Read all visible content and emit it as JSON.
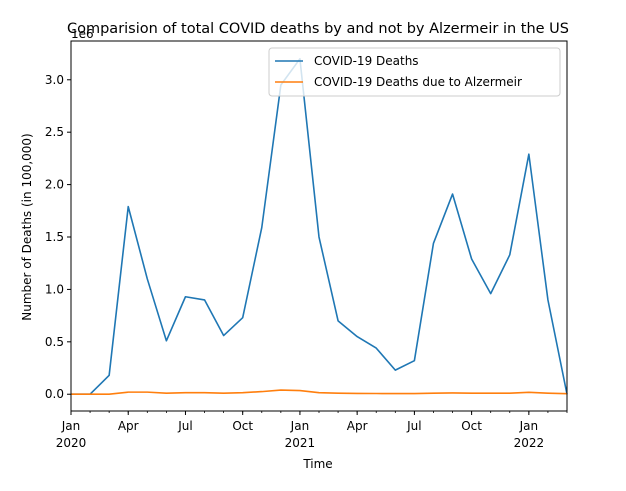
{
  "chart_data": {
    "type": "line",
    "title": "Comparision of total COVID deaths by and not by Alzermeir in the US",
    "xlabel": "Time",
    "ylabel": "Number of Deaths (in 100,000)",
    "y_offset_text": "1e6",
    "x": [
      "2020-01",
      "2020-02",
      "2020-03",
      "2020-04",
      "2020-05",
      "2020-06",
      "2020-07",
      "2020-08",
      "2020-09",
      "2020-10",
      "2020-11",
      "2020-12",
      "2021-01",
      "2021-02",
      "2021-03",
      "2021-04",
      "2021-05",
      "2021-06",
      "2021-07",
      "2021-08",
      "2021-09",
      "2021-10",
      "2021-11",
      "2021-12",
      "2022-01",
      "2022-02",
      "2022-03"
    ],
    "xlim": [
      "2020-01",
      "2022-03"
    ],
    "ylim": [
      -0.16,
      3.37
    ],
    "x_ticks": [
      {
        "x": "2020-01",
        "label": "Jan",
        "sublabel": "2020"
      },
      {
        "x": "2020-04",
        "label": "Apr",
        "sublabel": ""
      },
      {
        "x": "2020-07",
        "label": "Jul",
        "sublabel": ""
      },
      {
        "x": "2020-10",
        "label": "Oct",
        "sublabel": ""
      },
      {
        "x": "2021-01",
        "label": "Jan",
        "sublabel": "2021"
      },
      {
        "x": "2021-04",
        "label": "Apr",
        "sublabel": ""
      },
      {
        "x": "2021-07",
        "label": "Jul",
        "sublabel": ""
      },
      {
        "x": "2021-10",
        "label": "Oct",
        "sublabel": ""
      },
      {
        "x": "2022-01",
        "label": "Jan",
        "sublabel": "2022"
      }
    ],
    "y_ticks": [
      {
        "value": 0.0,
        "label": "0.0"
      },
      {
        "value": 0.5,
        "label": "0.5"
      },
      {
        "value": 1.0,
        "label": "1.0"
      },
      {
        "value": 1.5,
        "label": "1.5"
      },
      {
        "value": 2.0,
        "label": "2.0"
      },
      {
        "value": 2.5,
        "label": "2.5"
      },
      {
        "value": 3.0,
        "label": "3.0"
      }
    ],
    "grid": false,
    "legend_position": "top-right",
    "series": [
      {
        "name": "COVID-19 Deaths",
        "color": "#1f77b4",
        "values": [
          0.0,
          0.0,
          0.18,
          1.79,
          1.1,
          0.51,
          0.93,
          0.9,
          0.56,
          0.73,
          1.59,
          2.95,
          3.2,
          1.5,
          0.7,
          0.55,
          0.44,
          0.23,
          0.32,
          1.44,
          1.91,
          1.29,
          0.96,
          1.33,
          2.29,
          0.9,
          0.0
        ]
      },
      {
        "name": "COVID-19 Deaths due to Alzermeir",
        "color": "#ff7f0e",
        "values": [
          0.0,
          0.0,
          0.0,
          0.02,
          0.02,
          0.01,
          0.015,
          0.015,
          0.01,
          0.015,
          0.025,
          0.04,
          0.035,
          0.015,
          0.01,
          0.008,
          0.007,
          0.006,
          0.006,
          0.01,
          0.012,
          0.01,
          0.01,
          0.01,
          0.018,
          0.01,
          0.005
        ]
      }
    ]
  }
}
